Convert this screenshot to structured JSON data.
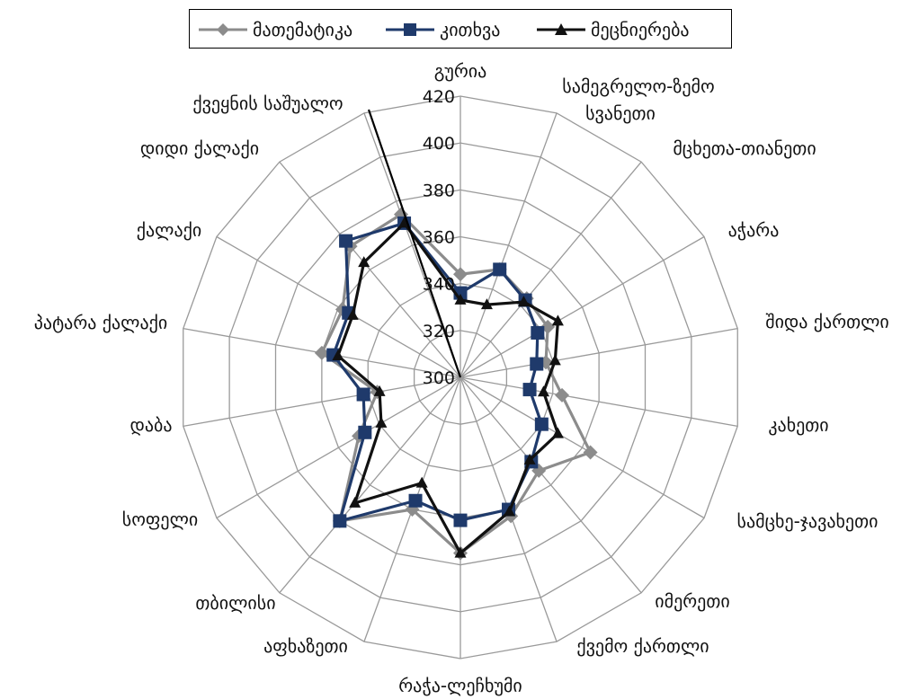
{
  "chart_data": {
    "type": "radar",
    "title": "",
    "rlim": [
      300,
      420
    ],
    "r_ticks": [
      300,
      320,
      340,
      360,
      380,
      400,
      420
    ],
    "grid": true,
    "legend_position": "top",
    "categories": [
      "გურია",
      "სამეგრელო-ზემო სვანეთი",
      "მცხეთა-თიანეთი",
      "აჭარა",
      "შიდა ქართლი",
      "კახეთი",
      "სამცხე-ჯავახეთი",
      "იმერეთი",
      "ქვემო ქართლი",
      "რაჭა-ლეჩხუმი",
      "აფხაზეთი",
      "თბილისი",
      "სოფელი",
      "დაბა",
      "პატარა ქალაქი",
      "ქალაქი",
      "დიდი ქალაქი",
      "ქვეყნის საშუალო"
    ],
    "series": [
      {
        "name": "მათემატიკა",
        "color": "#8c8c8c",
        "marker": "diamond",
        "values": [
          344,
          349,
          344,
          343,
          337,
          344,
          364,
          352,
          363,
          375,
          360,
          380,
          350,
          336,
          360,
          358,
          373,
          374
        ]
      },
      {
        "name": "კითხვა",
        "color": "#1f3a6b",
        "marker": "square",
        "values": [
          336,
          349,
          343,
          338,
          333,
          330,
          340,
          347,
          360,
          361,
          356,
          380,
          347,
          342,
          355,
          355,
          376,
          370
        ]
      },
      {
        "name": "მეცნიერება",
        "color": "#111111",
        "marker": "triangle",
        "values": [
          333,
          333,
          342,
          348,
          341,
          336,
          348,
          346,
          361,
          375,
          348,
          370,
          339,
          335,
          353,
          353,
          364,
          370
        ]
      }
    ],
    "annotation": "ქვეყნის საშუალო"
  }
}
